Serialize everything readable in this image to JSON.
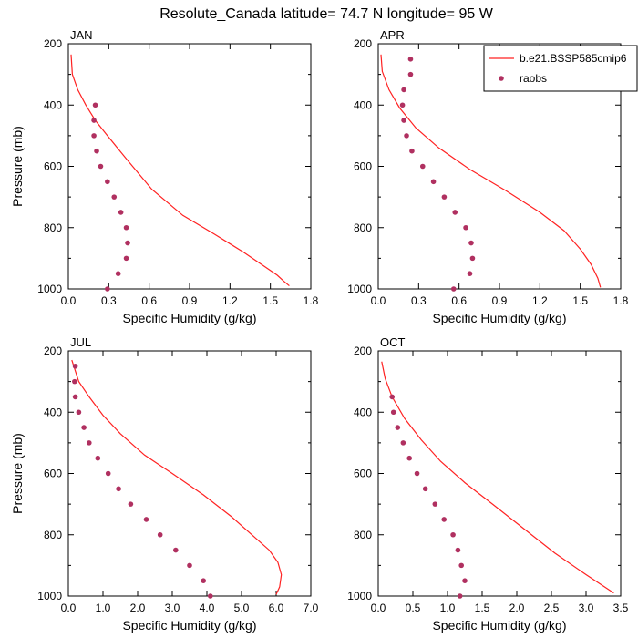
{
  "title": "Resolute_Canada  latitude= 74.7 N longitude= 95 W",
  "legend": {
    "model_label": "b.e21.BSSP585cmip6",
    "obs_label": "raobs"
  },
  "colors": {
    "model_line": "#ff2222",
    "obs_marker": "#b03060",
    "frame": "#000000",
    "background": "#ffffff"
  },
  "chart_data": [
    {
      "type": "line",
      "panel": "JAN",
      "xlabel": "Specific Humidity (g/kg)",
      "ylabel": "Pressure (mb)",
      "xlim": [
        0,
        1.8
      ],
      "ylim": [
        1000,
        200
      ],
      "y_reversed": true,
      "x_ticks": [
        "0.0",
        "0.3",
        "0.6",
        "0.9",
        "1.2",
        "1.5",
        "1.8"
      ],
      "y_ticks": [
        "200",
        "400",
        "600",
        "800",
        "1000"
      ],
      "series": [
        {
          "name": "b.e21.BSSP585cmip6",
          "style": "line",
          "points": [
            [
              0.02,
              235
            ],
            [
              0.03,
              300
            ],
            [
              0.07,
              350
            ],
            [
              0.13,
              400
            ],
            [
              0.2,
              450
            ],
            [
              0.29,
              500
            ],
            [
              0.43,
              575
            ],
            [
              0.62,
              675
            ],
            [
              0.85,
              760
            ],
            [
              1.08,
              820
            ],
            [
              1.3,
              880
            ],
            [
              1.45,
              925
            ],
            [
              1.55,
              955
            ],
            [
              1.6,
              975
            ],
            [
              1.64,
              990
            ]
          ]
        },
        {
          "name": "raobs",
          "style": "markers",
          "points": [
            [
              0.2,
              400
            ],
            [
              0.19,
              450
            ],
            [
              0.19,
              500
            ],
            [
              0.21,
              550
            ],
            [
              0.24,
              600
            ],
            [
              0.29,
              650
            ],
            [
              0.34,
              700
            ],
            [
              0.39,
              750
            ],
            [
              0.43,
              800
            ],
            [
              0.44,
              850
            ],
            [
              0.43,
              900
            ],
            [
              0.37,
              950
            ],
            [
              0.29,
              1000
            ]
          ]
        }
      ]
    },
    {
      "type": "line",
      "panel": "APR",
      "xlabel": "Specific Humidity (g/kg)",
      "ylabel": "",
      "xlim": [
        0,
        1.8
      ],
      "ylim": [
        1000,
        200
      ],
      "y_reversed": true,
      "x_ticks": [
        "0.0",
        "0.3",
        "0.6",
        "0.9",
        "1.2",
        "1.5",
        "1.8"
      ],
      "y_ticks": [
        "200",
        "400",
        "600",
        "800",
        "1000"
      ],
      "series": [
        {
          "name": "b.e21.BSSP585cmip6",
          "style": "line",
          "points": [
            [
              0.02,
              235
            ],
            [
              0.03,
              290
            ],
            [
              0.08,
              350
            ],
            [
              0.16,
              410
            ],
            [
              0.28,
              475
            ],
            [
              0.45,
              540
            ],
            [
              0.68,
              610
            ],
            [
              0.95,
              680
            ],
            [
              1.2,
              750
            ],
            [
              1.38,
              810
            ],
            [
              1.5,
              870
            ],
            [
              1.58,
              920
            ],
            [
              1.63,
              965
            ],
            [
              1.65,
              995
            ]
          ]
        },
        {
          "name": "raobs",
          "style": "markers",
          "points": [
            [
              0.24,
              250
            ],
            [
              0.24,
              300
            ],
            [
              0.19,
              350
            ],
            [
              0.18,
              400
            ],
            [
              0.19,
              450
            ],
            [
              0.21,
              500
            ],
            [
              0.25,
              550
            ],
            [
              0.33,
              600
            ],
            [
              0.41,
              650
            ],
            [
              0.49,
              700
            ],
            [
              0.57,
              750
            ],
            [
              0.65,
              800
            ],
            [
              0.69,
              850
            ],
            [
              0.7,
              900
            ],
            [
              0.68,
              950
            ],
            [
              0.56,
              1000
            ]
          ]
        }
      ]
    },
    {
      "type": "line",
      "panel": "JUL",
      "xlabel": "Specific Humidity (g/kg)",
      "ylabel": "Pressure (mb)",
      "xlim": [
        0,
        7.0
      ],
      "ylim": [
        1000,
        200
      ],
      "y_reversed": true,
      "x_ticks": [
        "0.0",
        "1.0",
        "2.0",
        "3.0",
        "4.0",
        "5.0",
        "6.0",
        "7.0"
      ],
      "y_ticks": [
        "200",
        "400",
        "600",
        "800",
        "1000"
      ],
      "series": [
        {
          "name": "b.e21.BSSP585cmip6",
          "style": "line",
          "points": [
            [
              0.1,
              230
            ],
            [
              0.3,
              300
            ],
            [
              0.6,
              350
            ],
            [
              1.0,
              410
            ],
            [
              1.5,
              470
            ],
            [
              2.2,
              540
            ],
            [
              3.0,
              600
            ],
            [
              3.9,
              670
            ],
            [
              4.7,
              740
            ],
            [
              5.3,
              800
            ],
            [
              5.8,
              850
            ],
            [
              6.05,
              890
            ],
            [
              6.15,
              930
            ],
            [
              6.1,
              970
            ],
            [
              6.0,
              995
            ]
          ]
        },
        {
          "name": "raobs",
          "style": "markers",
          "points": [
            [
              0.2,
              250
            ],
            [
              0.18,
              300
            ],
            [
              0.2,
              350
            ],
            [
              0.3,
              400
            ],
            [
              0.45,
              450
            ],
            [
              0.6,
              500
            ],
            [
              0.85,
              550
            ],
            [
              1.15,
              600
            ],
            [
              1.45,
              650
            ],
            [
              1.8,
              700
            ],
            [
              2.25,
              750
            ],
            [
              2.65,
              800
            ],
            [
              3.1,
              850
            ],
            [
              3.5,
              900
            ],
            [
              3.9,
              950
            ],
            [
              4.1,
              1000
            ]
          ]
        }
      ]
    },
    {
      "type": "line",
      "panel": "OCT",
      "xlabel": "Specific Humidity (g/kg)",
      "ylabel": "",
      "xlim": [
        0,
        3.5
      ],
      "ylim": [
        1000,
        200
      ],
      "y_reversed": true,
      "x_ticks": [
        "0.0",
        "0.5",
        "1.0",
        "1.5",
        "2.0",
        "2.5",
        "3.0",
        "3.5"
      ],
      "y_ticks": [
        "200",
        "400",
        "600",
        "800",
        "1000"
      ],
      "series": [
        {
          "name": "b.e21.BSSP585cmip6",
          "style": "line",
          "points": [
            [
              0.05,
              235
            ],
            [
              0.1,
              290
            ],
            [
              0.2,
              350
            ],
            [
              0.38,
              420
            ],
            [
              0.62,
              490
            ],
            [
              0.9,
              560
            ],
            [
              1.25,
              630
            ],
            [
              1.65,
              700
            ],
            [
              2.1,
              780
            ],
            [
              2.55,
              860
            ],
            [
              3.0,
              930
            ],
            [
              3.4,
              990
            ]
          ]
        },
        {
          "name": "raobs",
          "style": "markers",
          "points": [
            [
              0.2,
              350
            ],
            [
              0.22,
              400
            ],
            [
              0.28,
              450
            ],
            [
              0.36,
              500
            ],
            [
              0.45,
              550
            ],
            [
              0.56,
              600
            ],
            [
              0.68,
              650
            ],
            [
              0.82,
              700
            ],
            [
              0.95,
              750
            ],
            [
              1.08,
              800
            ],
            [
              1.15,
              850
            ],
            [
              1.2,
              900
            ],
            [
              1.25,
              950
            ],
            [
              1.18,
              1000
            ]
          ]
        }
      ]
    }
  ]
}
